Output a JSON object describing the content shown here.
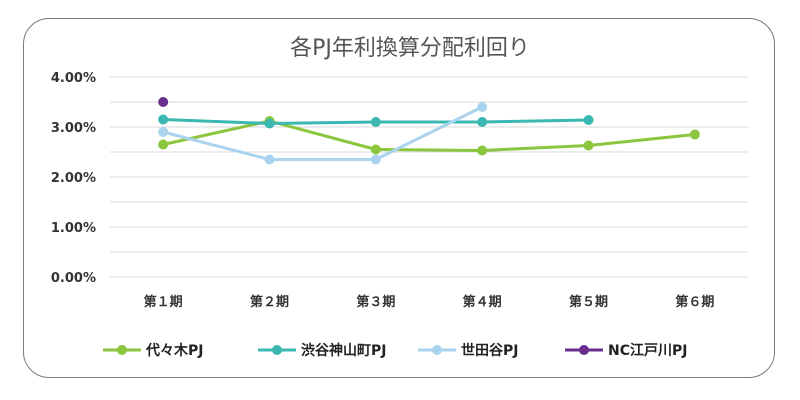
{
  "chart_data": {
    "type": "line",
    "title": "各PJ年利換算分配利回り",
    "categories": [
      "第１期",
      "第２期",
      "第３期",
      "第４期",
      "第５期",
      "第６期"
    ],
    "yticks": [
      "0.00%",
      "1.00%",
      "2.00%",
      "3.00%",
      "4.00%"
    ],
    "ylim": [
      0,
      4
    ],
    "grid": true,
    "legend_position": "bottom",
    "series": [
      {
        "name": "代々木PJ",
        "color": "#8cc63f",
        "values": [
          2.65,
          3.12,
          2.55,
          2.53,
          2.63,
          2.85
        ]
      },
      {
        "name": "渋谷神山町PJ",
        "color": "#3bb8b1",
        "values": [
          3.15,
          3.07,
          3.1,
          3.1,
          3.14,
          null
        ]
      },
      {
        "name": "世田谷PJ",
        "color": "#a9d3ee",
        "values": [
          2.9,
          2.35,
          2.35,
          3.4,
          null,
          null
        ]
      },
      {
        "name": "NC江戸川PJ",
        "color": "#6a2e8e",
        "values": [
          3.5,
          null,
          null,
          null,
          null,
          null
        ]
      }
    ]
  }
}
